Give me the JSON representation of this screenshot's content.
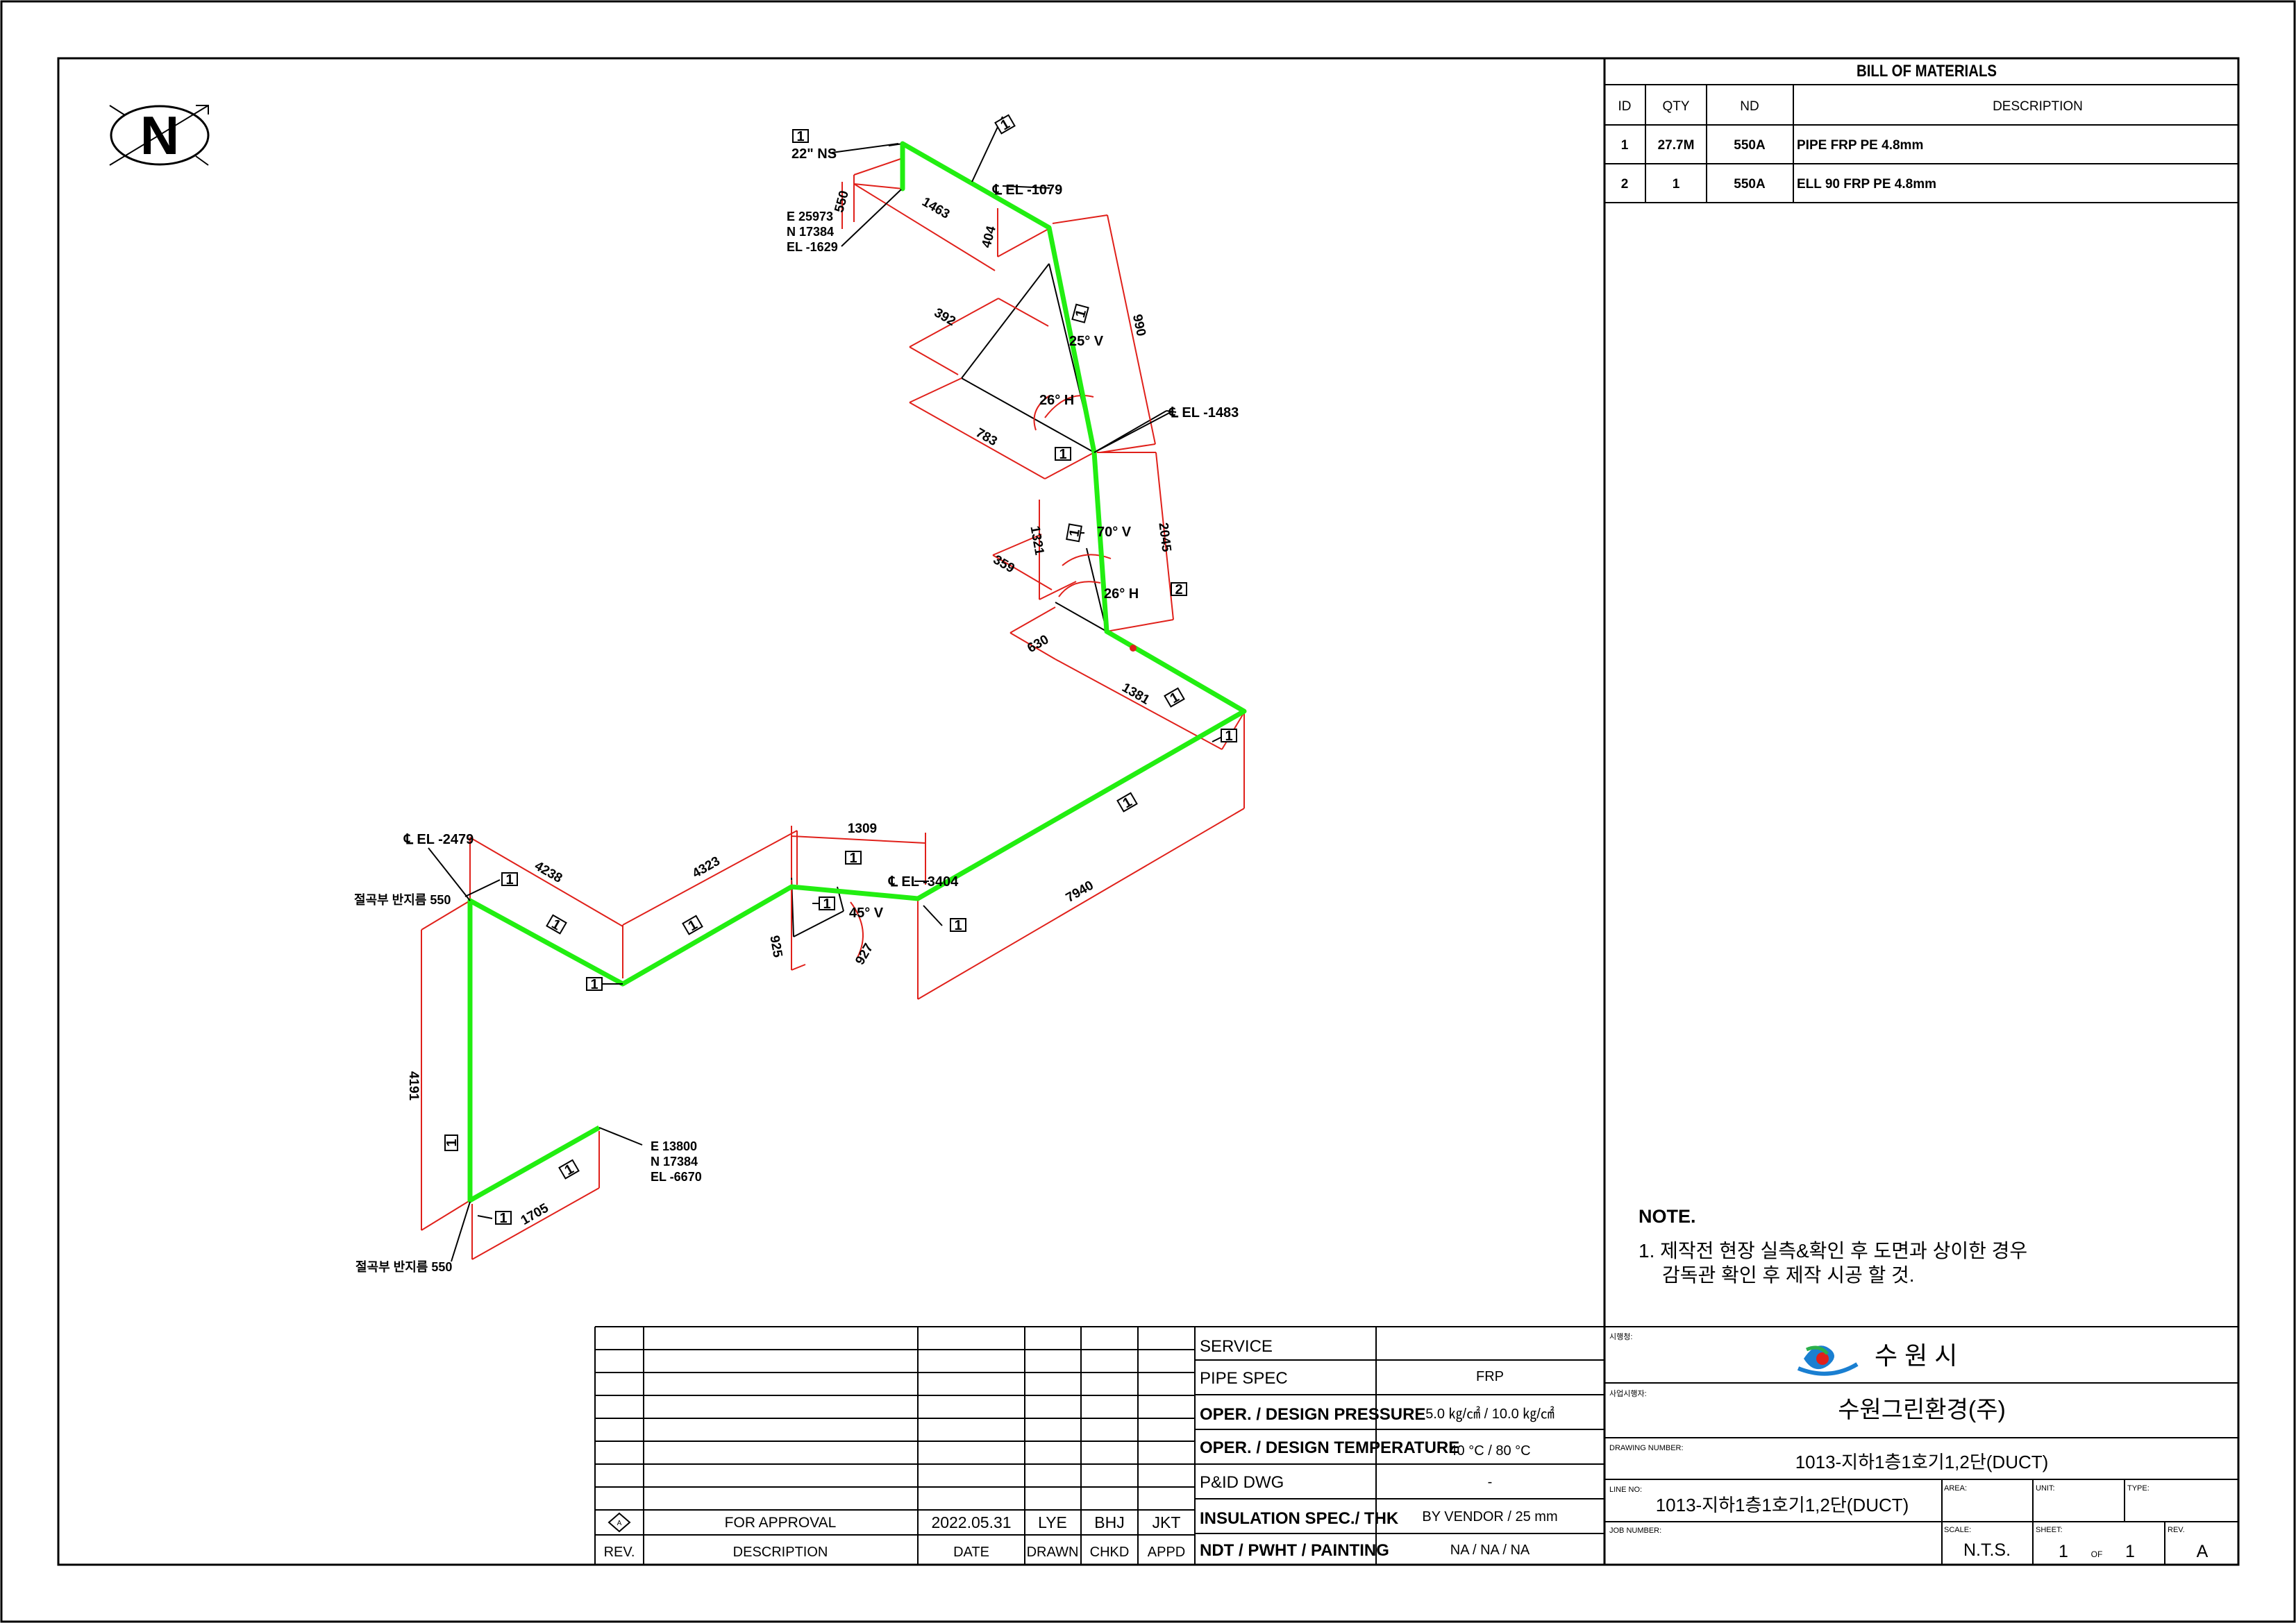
{
  "bom": {
    "title": "BILL OF MATERIALS",
    "headers": [
      "ID",
      "QTY",
      "ND",
      "DESCRIPTION"
    ],
    "rows": [
      [
        "1",
        "27.7M",
        "550A",
        "PIPE FRP PE 4.8mm"
      ],
      [
        "2",
        "1",
        "550A",
        "ELL 90 FRP PE 4.8mm"
      ]
    ]
  },
  "note": {
    "title": "NOTE.",
    "line1": "1. 제작전 현장 실측&확인 후 도면과 상이한 경우",
    "line2": "감독관 확인 후 제작 시공 할 것."
  },
  "service_table": {
    "rows": [
      {
        "label": "SERVICE",
        "value": ""
      },
      {
        "label": "PIPE SPEC",
        "value": "FRP"
      },
      {
        "label": "OPER. / DESIGN PRESSURE",
        "value": "5.0  ㎏/㎠  /  10.0 ㎏/㎠"
      },
      {
        "label": "OPER. / DESIGN TEMPERATURE",
        "value": "40 °C / 80 °C"
      },
      {
        "label": "P&ID DWG",
        "value": "-"
      },
      {
        "label": "INSULATION SPEC./ THK",
        "value": "BY VENDOR / 25 mm"
      },
      {
        "label": "NDT / PWHT / PAINTING",
        "value": "NA / NA / NA"
      }
    ]
  },
  "revision": {
    "row": {
      "rev": "A",
      "description": "FOR APPROVAL",
      "date": "2022.05.31",
      "drawn": "LYE",
      "chkd": "BHJ",
      "appd": "JKT"
    },
    "headers": {
      "rev": "REV.",
      "description": "DESCRIPTION",
      "date": "DATE",
      "drawn": "DRAWN",
      "chkd": "CHKD",
      "appd": "APPD"
    }
  },
  "title_block": {
    "client_label": "시행청:",
    "client": "수  원  시",
    "contractor_label": "사업시행자:",
    "contractor": "수원그린환경(주)",
    "drawing_number_label": "DRAWING NUMBER:",
    "drawing_number": "1013-지하1층1호기1,2단(DUCT)",
    "line_no_label": "LINE NO:",
    "line_no": "1013-지하1층1호기1,2단(DUCT)",
    "area_label": "AREA:",
    "unit_label": "UNIT:",
    "type_label": "TYPE:",
    "job_number_label": "JOB NUMBER:",
    "scale_label": "SCALE:",
    "scale": "N.T.S.",
    "sheet_label": "SHEET:",
    "sheet": "1",
    "sheet_of": "OF",
    "sheet_total": "1",
    "rev_label": "REV.",
    "rev": "A"
  },
  "north_symbol": "N",
  "drawing": {
    "tag1": "1",
    "tag2": "2",
    "top_size": "22\" NS",
    "top_coord_e": "E 25973",
    "top_coord_n": "N 17384",
    "top_coord_el": "EL -1629",
    "el_1079": "℄ EL -1079",
    "el_1483": "℄ EL -1483",
    "el_2479": "℄ EL -2479",
    "el_3404": "℄ EL -3404",
    "bot_coord_e": "E 13800",
    "bot_coord_n": "N 17384",
    "bot_coord_el": "EL -6670",
    "support_top": "절곡부 반지름 550",
    "support_bot": "절곡부 반지름 550",
    "ang_25v": "25° V",
    "ang_26h_1": "26° H",
    "ang_70v": "70° V",
    "ang_26h_2": "26° H",
    "ang_45v": "45° V",
    "d_550": "550",
    "d_1463": "1463",
    "d_404": "404",
    "d_990": "990",
    "d_392": "392",
    "d_783": "783",
    "d_1321": "1321",
    "d_2045": "2045",
    "d_359": "359",
    "d_630": "630",
    "d_1381": "1381",
    "d_7940": "7940",
    "d_1309": "1309",
    "d_4323": "4323",
    "d_4238": "4238",
    "d_925": "925",
    "d_927": "927",
    "d_4191": "4191",
    "d_1705": "1705"
  },
  "colors": {
    "pipe": "#22ee11",
    "dimension": "#e0201a",
    "line": "#000000"
  }
}
